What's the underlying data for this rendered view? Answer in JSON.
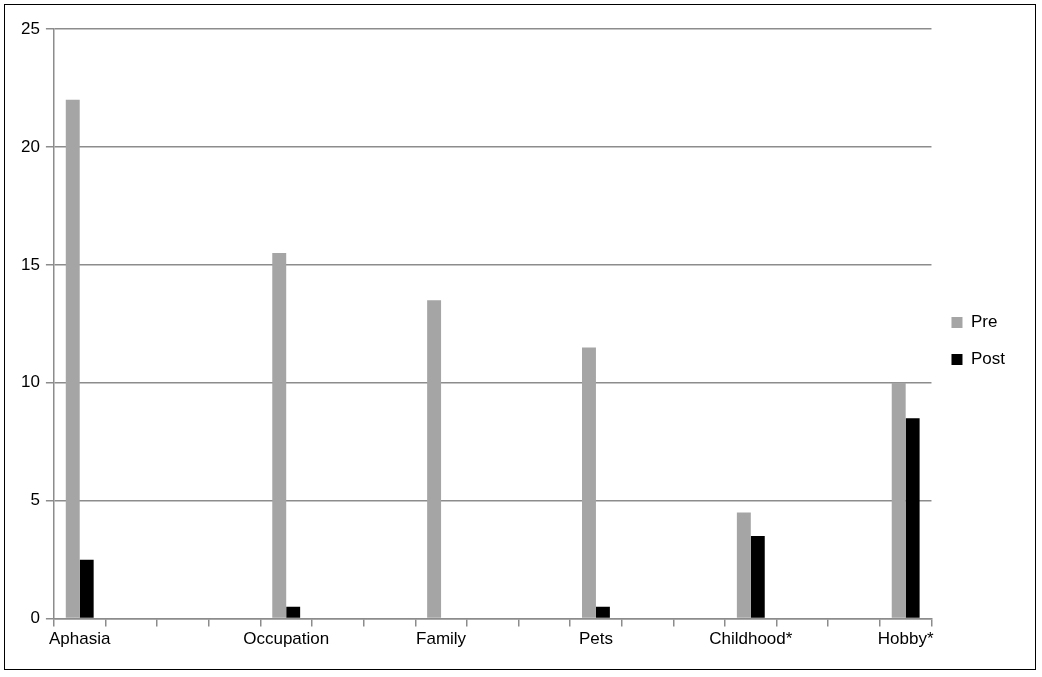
{
  "chart_data": {
    "type": "bar",
    "categories": [
      "Aphasia",
      null,
      null,
      null,
      "Occupation",
      null,
      null,
      "Family",
      null,
      null,
      "Pets",
      null,
      null,
      "Childhood*",
      null,
      null,
      "Hobby*"
    ],
    "series": [
      {
        "name": "Pre",
        "color": "#a5a5a5",
        "values": [
          22,
          null,
          null,
          null,
          15.5,
          null,
          null,
          13.5,
          null,
          null,
          11.5,
          null,
          null,
          4.5,
          null,
          null,
          10
        ]
      },
      {
        "name": "Post",
        "color": "#000000",
        "values": [
          2.5,
          null,
          null,
          null,
          0.5,
          null,
          null,
          0,
          null,
          null,
          0.5,
          null,
          null,
          3.5,
          null,
          null,
          8.5
        ]
      }
    ],
    "ylim": [
      0,
      25
    ],
    "yticks": [
      0,
      5,
      10,
      15,
      20,
      25
    ],
    "grid": "y",
    "legend": "right"
  }
}
